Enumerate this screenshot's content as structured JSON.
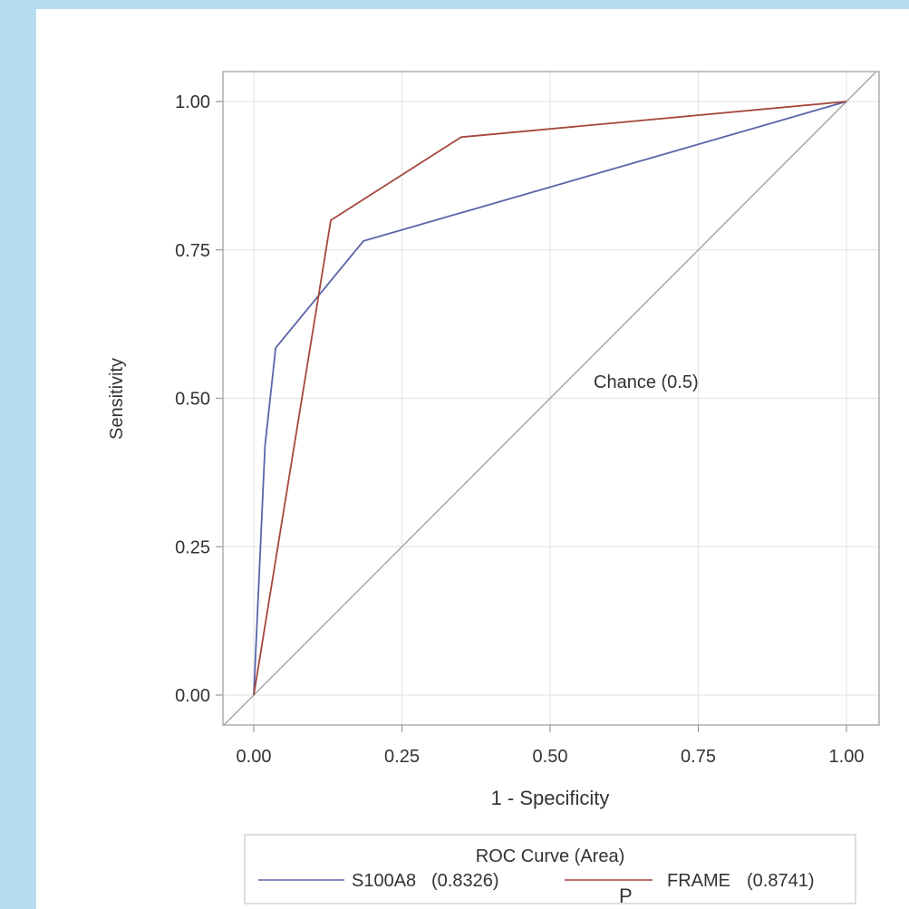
{
  "chart_data": {
    "type": "line",
    "xlabel": "1 - Specificity",
    "ylabel": "Sensitivity",
    "xlim": [
      0,
      1
    ],
    "ylim": [
      0,
      1
    ],
    "x_ticks": [
      "0.00",
      "0.25",
      "0.50",
      "0.75",
      "1.00"
    ],
    "y_ticks": [
      "0.00",
      "0.25",
      "0.50",
      "0.75",
      "1.00"
    ],
    "grid": true,
    "legend_title": "ROC Curve (Area)",
    "legend_position": "bottom",
    "reference_line": {
      "label": "Chance (0.5)",
      "x": [
        0,
        1
      ],
      "y": [
        0,
        1
      ]
    },
    "series": [
      {
        "name": "S100A8",
        "area": "(0.8326)",
        "color": "#5a64a8",
        "x": [
          0,
          0.019,
          0.037,
          0.185,
          1
        ],
        "y": [
          0,
          0.42,
          0.585,
          0.765,
          1
        ]
      },
      {
        "name": "FRAME",
        "area": "(0.8741)",
        "color": "#a5473d",
        "x": [
          0,
          0.13,
          0.35,
          1
        ],
        "y": [
          0,
          0.8,
          0.94,
          1
        ]
      }
    ],
    "annotation": "P"
  },
  "colors": {
    "background": "#b5dcf0",
    "panel": "#ffffff",
    "grid": "#e6e6e6",
    "axis": "#9a9a9a",
    "reference": "#a9a9a9"
  }
}
